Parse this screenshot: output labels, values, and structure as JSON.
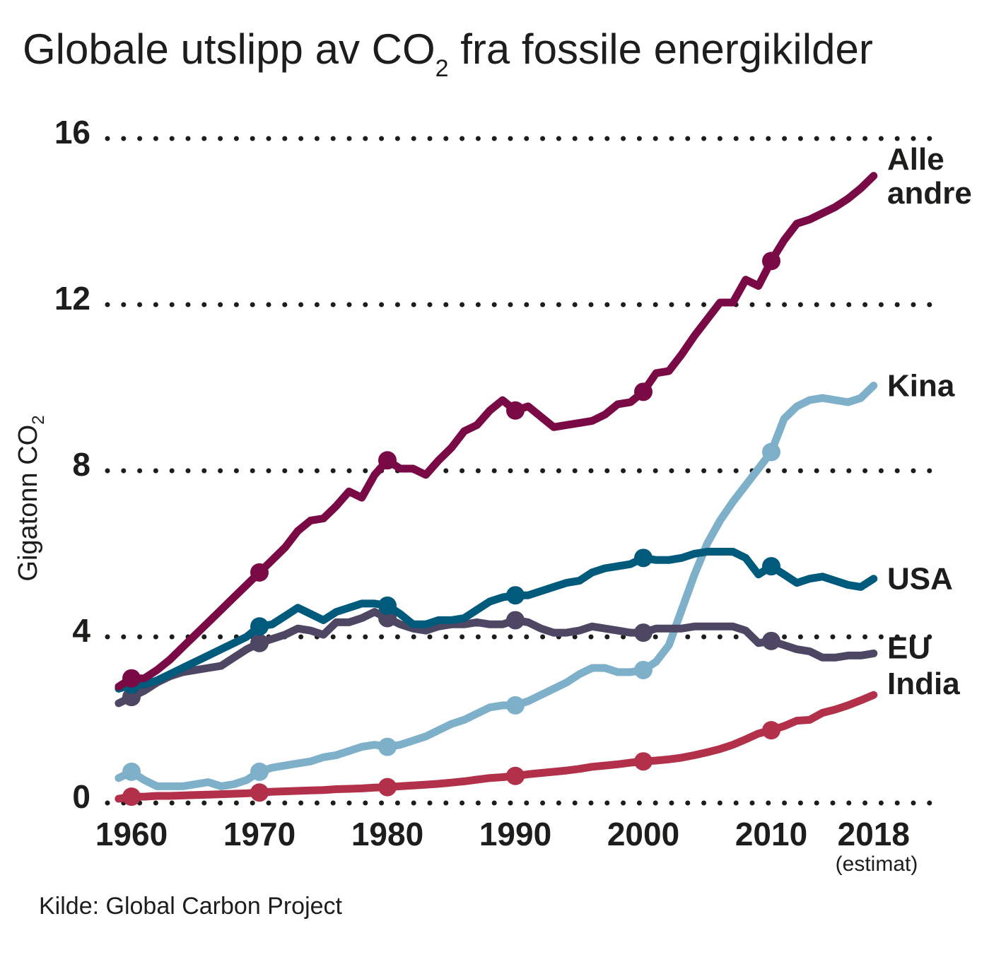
{
  "title": {
    "prefix": "Globale utslipp av CO",
    "subscript": "2",
    "suffix": " fra fossile energikilder"
  },
  "source": "Kilde: Global Carbon Project",
  "chart_data": {
    "type": "line",
    "title": "Globale utslipp av CO2 fra fossile energikilder",
    "ylabel": {
      "main": "Gigatonn CO",
      "subscript": "2"
    },
    "xlabel": "",
    "ylim": [
      0,
      16
    ],
    "xlim": [
      1959,
      2018
    ],
    "yticks": [
      {
        "value": 0,
        "label": "0"
      },
      {
        "value": 4,
        "label": "4"
      },
      {
        "value": 8,
        "label": "8"
      },
      {
        "value": 12,
        "label": "12"
      },
      {
        "value": 16,
        "label": "16"
      }
    ],
    "xticks": [
      {
        "value": 1960,
        "label": "1960"
      },
      {
        "value": 1970,
        "label": "1970"
      },
      {
        "value": 1980,
        "label": "1980"
      },
      {
        "value": 1990,
        "label": "1990"
      },
      {
        "value": 2000,
        "label": "2000"
      },
      {
        "value": 2010,
        "label": "2010"
      },
      {
        "value": 2018,
        "label": "2018"
      }
    ],
    "x_note": "(estimat)",
    "grid": "horizontal-dotted",
    "legend": "direct-labels-right",
    "markers_at": [
      1960,
      1970,
      1980,
      1990,
      2000,
      2010
    ],
    "x": [
      1959,
      1960,
      1961,
      1962,
      1963,
      1964,
      1965,
      1966,
      1967,
      1968,
      1969,
      1970,
      1971,
      1972,
      1973,
      1974,
      1975,
      1976,
      1977,
      1978,
      1979,
      1980,
      1981,
      1982,
      1983,
      1984,
      1985,
      1986,
      1987,
      1988,
      1989,
      1990,
      1991,
      1992,
      1993,
      1994,
      1995,
      1996,
      1997,
      1998,
      1999,
      2000,
      2001,
      2002,
      2003,
      2004,
      2005,
      2006,
      2007,
      2008,
      2009,
      2010,
      2011,
      2012,
      2013,
      2014,
      2015,
      2016,
      2017,
      2018
    ],
    "series": [
      {
        "name": "Alle andre",
        "label_lines": [
          "Alle",
          "andre"
        ],
        "color": "#7a0a45",
        "values": [
          2.75,
          2.95,
          2.95,
          3.15,
          3.4,
          3.7,
          4.0,
          4.3,
          4.6,
          4.9,
          5.2,
          5.5,
          5.8,
          6.1,
          6.5,
          6.75,
          6.8,
          7.1,
          7.45,
          7.3,
          7.85,
          8.2,
          8.0,
          8.0,
          7.85,
          8.2,
          8.5,
          8.9,
          9.05,
          9.4,
          9.65,
          9.4,
          9.5,
          9.25,
          9.0,
          9.05,
          9.1,
          9.15,
          9.3,
          9.55,
          9.6,
          9.85,
          10.3,
          10.35,
          10.75,
          11.2,
          11.6,
          12.0,
          12.0,
          12.55,
          12.4,
          13.0,
          13.5,
          13.9,
          14.0,
          14.15,
          14.3,
          14.5,
          14.75,
          15.05
        ]
      },
      {
        "name": "Kina",
        "label_lines": [
          "Kina"
        ],
        "color": "#7fb0ca",
        "values": [
          0.55,
          0.7,
          0.5,
          0.35,
          0.35,
          0.35,
          0.4,
          0.45,
          0.35,
          0.4,
          0.5,
          0.7,
          0.8,
          0.85,
          0.9,
          0.95,
          1.05,
          1.1,
          1.2,
          1.3,
          1.35,
          1.3,
          1.35,
          1.45,
          1.55,
          1.7,
          1.85,
          1.95,
          2.1,
          2.25,
          2.3,
          2.3,
          2.4,
          2.55,
          2.7,
          2.85,
          3.05,
          3.2,
          3.2,
          3.1,
          3.1,
          3.15,
          3.35,
          3.75,
          4.6,
          5.45,
          6.2,
          6.75,
          7.2,
          7.6,
          8.0,
          8.4,
          9.2,
          9.5,
          9.65,
          9.7,
          9.65,
          9.6,
          9.7,
          10.0
        ]
      },
      {
        "name": "USA",
        "label_lines": [
          "USA"
        ],
        "color": "#005a7c",
        "values": [
          2.7,
          2.8,
          2.8,
          2.9,
          3.05,
          3.2,
          3.35,
          3.5,
          3.65,
          3.8,
          3.95,
          4.2,
          4.25,
          4.45,
          4.65,
          4.5,
          4.35,
          4.55,
          4.65,
          4.75,
          4.75,
          4.7,
          4.5,
          4.25,
          4.25,
          4.35,
          4.35,
          4.4,
          4.6,
          4.8,
          4.9,
          4.95,
          4.95,
          5.05,
          5.15,
          5.25,
          5.3,
          5.5,
          5.6,
          5.65,
          5.7,
          5.85,
          5.8,
          5.8,
          5.85,
          5.95,
          6.0,
          6.0,
          6.0,
          5.85,
          5.45,
          5.65,
          5.45,
          5.25,
          5.35,
          5.4,
          5.3,
          5.2,
          5.15,
          5.35
        ]
      },
      {
        "name": "EU",
        "label_lines": [
          "EU"
        ],
        "color": "#4e4764",
        "values": [
          2.35,
          2.5,
          2.65,
          2.85,
          3.0,
          3.1,
          3.15,
          3.2,
          3.25,
          3.45,
          3.65,
          3.8,
          3.9,
          4.0,
          4.15,
          4.1,
          4.0,
          4.3,
          4.3,
          4.4,
          4.55,
          4.4,
          4.25,
          4.15,
          4.1,
          4.2,
          4.25,
          4.25,
          4.3,
          4.25,
          4.25,
          4.35,
          4.3,
          4.15,
          4.05,
          4.05,
          4.1,
          4.2,
          4.15,
          4.1,
          4.05,
          4.05,
          4.15,
          4.15,
          4.15,
          4.2,
          4.2,
          4.2,
          4.2,
          4.1,
          3.8,
          3.85,
          3.75,
          3.65,
          3.6,
          3.45,
          3.45,
          3.5,
          3.5,
          3.55
        ]
      },
      {
        "name": "India",
        "label_lines": [
          "India"
        ],
        "color": "#b23049",
        "values": [
          0.05,
          0.1,
          0.1,
          0.12,
          0.12,
          0.13,
          0.14,
          0.15,
          0.16,
          0.17,
          0.18,
          0.2,
          0.22,
          0.23,
          0.24,
          0.25,
          0.26,
          0.28,
          0.29,
          0.3,
          0.32,
          0.33,
          0.35,
          0.37,
          0.39,
          0.41,
          0.44,
          0.47,
          0.51,
          0.55,
          0.57,
          0.6,
          0.64,
          0.67,
          0.7,
          0.73,
          0.77,
          0.82,
          0.85,
          0.88,
          0.92,
          0.95,
          0.97,
          1.0,
          1.04,
          1.1,
          1.17,
          1.25,
          1.35,
          1.48,
          1.62,
          1.7,
          1.8,
          1.93,
          1.95,
          2.12,
          2.2,
          2.3,
          2.42,
          2.55
        ]
      }
    ]
  }
}
